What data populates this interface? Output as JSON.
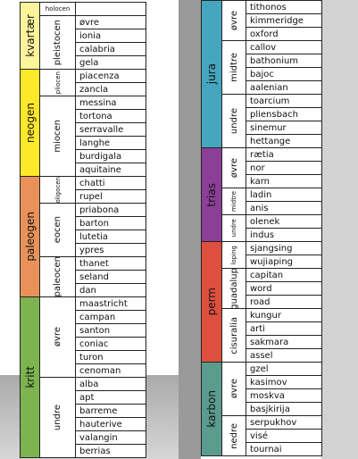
{
  "left": [
    {
      "period": "kvartær",
      "color": "#fdf39b",
      "epochs": [
        {
          "name": "holocen",
          "stages": []
        },
        {
          "name": "pleistocen",
          "stages": [
            "øvre",
            "ionia",
            "calabria",
            "gela"
          ]
        }
      ]
    },
    {
      "period": "neogen",
      "color": "#fde82a",
      "epochs": [
        {
          "name": "pliocen",
          "stages": [
            "piacenza",
            "zancla"
          ]
        },
        {
          "name": "miocen",
          "stages": [
            "messina",
            "tortona",
            "serravalle",
            "langhe",
            "burdigala",
            "aquitaine"
          ]
        }
      ]
    },
    {
      "period": "paleogen",
      "color": "#e8925a",
      "epochs": [
        {
          "name": "oligocen",
          "stages": [
            "chatti",
            "rupel"
          ]
        },
        {
          "name": "eocen",
          "stages": [
            "priabona",
            "barton",
            "lutetia",
            "ypres"
          ]
        },
        {
          "name": "paleocen",
          "stages": [
            "thanet",
            "seland",
            "dan"
          ]
        }
      ]
    },
    {
      "period": "kritt",
      "color": "#7db44f",
      "epochs": [
        {
          "name": "øvre",
          "stages": [
            "maastricht",
            "campan",
            "santon",
            "coniac",
            "turon",
            "cenoman"
          ]
        },
        {
          "name": "undre",
          "stages": [
            "alba",
            "apt",
            "barreme",
            "hauterive",
            "valangin",
            "berrias"
          ]
        }
      ]
    }
  ],
  "right": [
    {
      "period": "jura",
      "color": "#44a6bf",
      "epochs": [
        {
          "name": "øvre",
          "stages": [
            "tithonos",
            "kimmeridge",
            "oxford"
          ]
        },
        {
          "name": "midtre",
          "stages": [
            "callov",
            "bathonium",
            "bajoc",
            "aalenian"
          ]
        },
        {
          "name": "undre",
          "stages": [
            "toarcium",
            "pliensbach",
            "sinemur",
            "hettange"
          ]
        }
      ]
    },
    {
      "period": "trias",
      "color": "#8b3f97",
      "epochs": [
        {
          "name": "øvre",
          "stages": [
            "rætia",
            "nor",
            "karn"
          ]
        },
        {
          "name": "midtre",
          "stages": [
            "ladin",
            "anis"
          ]
        },
        {
          "name": "undre",
          "stages": [
            "olenek",
            "indus"
          ]
        }
      ]
    },
    {
      "period": "perm",
      "color": "#de4f3e",
      "epochs": [
        {
          "name": "loping",
          "stages": [
            "sjangsing",
            "wujiaping"
          ]
        },
        {
          "name": "guadalup",
          "stages": [
            "capitan",
            "word",
            "road"
          ]
        },
        {
          "name": "cisuralia",
          "stages": [
            "kungur",
            "arti",
            "sakmara",
            "assel"
          ]
        }
      ]
    },
    {
      "period": "karbon",
      "color": "#5a9c8e",
      "epochs": [
        {
          "name": "øvre",
          "stages": [
            "gzel",
            "kasimov",
            "moskva",
            "basjkirija"
          ]
        },
        {
          "name": "nedre",
          "stages": [
            "serpukhov",
            "visé",
            "tournai"
          ]
        }
      ]
    }
  ]
}
